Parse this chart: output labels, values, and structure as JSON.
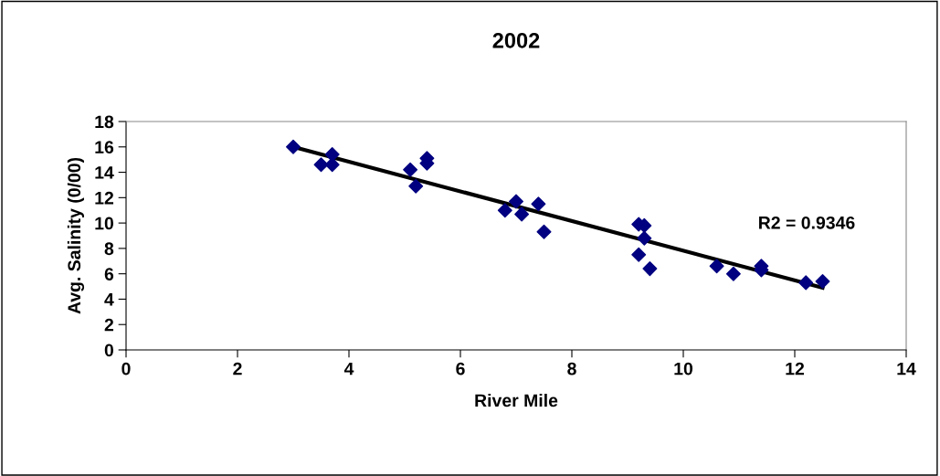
{
  "chart_data": {
    "type": "scatter",
    "title": "2002",
    "xlabel": "River Mile",
    "ylabel": "Avg. Salinity (0/00)",
    "annotations": [
      "R2 = 0.9346"
    ],
    "xlim": [
      0,
      14
    ],
    "xticks": [
      0,
      2,
      4,
      6,
      8,
      10,
      12,
      14
    ],
    "ylim": [
      0,
      18
    ],
    "yticks": [
      0,
      2,
      4,
      6,
      8,
      10,
      12,
      14,
      16,
      18
    ],
    "grid": false,
    "series": [
      {
        "color": "#000080",
        "marker": "diamond",
        "x": [
          3.0,
          3.5,
          3.7,
          3.7,
          5.1,
          5.2,
          5.4,
          5.4,
          6.8,
          7.0,
          7.1,
          7.4,
          7.5,
          9.2,
          9.3,
          9.3,
          9.2,
          9.4,
          10.6,
          10.9,
          11.4,
          11.4,
          12.2,
          12.5
        ],
        "values": [
          16.0,
          14.6,
          15.4,
          14.6,
          14.2,
          12.9,
          15.1,
          14.7,
          11.0,
          11.7,
          10.7,
          11.5,
          9.3,
          9.9,
          9.8,
          8.8,
          7.5,
          6.4,
          6.6,
          6.0,
          6.6,
          6.3,
          5.3,
          5.4
        ]
      },
      {
        "type": "line",
        "color": "#000000",
        "x": [
          3.0,
          12.5
        ],
        "values": [
          16.0,
          4.9
        ]
      }
    ]
  }
}
